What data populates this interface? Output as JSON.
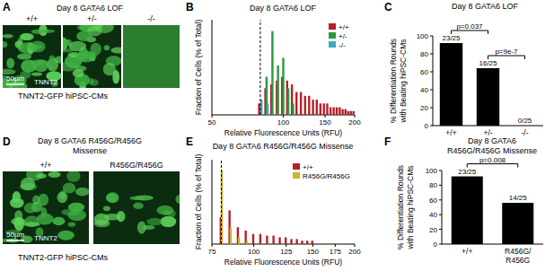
{
  "images": [
    {
      "panel_label": "A",
      "title": [
        "Day 8 GATA6 LOF"
      ],
      "labels": [
        "+/+",
        "+/-",
        "-/-"
      ],
      "stain": "TNNT2",
      "scale_bar": "50μm",
      "caption": "TNNT2-GFP hiPSC-CMs"
    },
    {
      "panel_label": "D",
      "title": [
        "Day 8 GATA6 R456G/R456G",
        "Missense"
      ],
      "labels": [
        "+/+",
        "R456G/R456G"
      ],
      "stain": "TNNT2",
      "scale_bar": "50μm",
      "caption": "TNNT2-GFP hiPSC-CMs"
    }
  ],
  "chart_data": [
    {
      "type": "bar",
      "panel_label": "B",
      "title": [
        "Day 8 GATA6 LOF"
      ],
      "x_label": "Relative Fluorescence Units (RFU)",
      "y_label": [
        "Fraction of Cells (% of Total)"
      ],
      "log": "x",
      "xlim": [
        50,
        200
      ],
      "xticks": [
        50,
        100,
        150,
        200
      ],
      "ylim": [
        0,
        25
      ],
      "yticks": [],
      "tick_labels": "x",
      "legend": "top-right",
      "reference_line": 80,
      "x": [
        80,
        85,
        90,
        95,
        100,
        105,
        110,
        115,
        120,
        125,
        130,
        135,
        140,
        145,
        150,
        155,
        160,
        165,
        170,
        175,
        180,
        185,
        190,
        195,
        200
      ],
      "series": [
        {
          "name": "+/+",
          "color": "#b3202a",
          "values": [
            3,
            7,
            8,
            9,
            10,
            9,
            8,
            6,
            6,
            5,
            5,
            4,
            4,
            3,
            3,
            3,
            2,
            2,
            2,
            2,
            1.5,
            1.5,
            1,
            1,
            1
          ]
        },
        {
          "name": "+/-",
          "color": "#2a9a3c",
          "values": [
            0,
            10,
            22,
            13,
            15,
            7,
            3,
            0,
            0,
            0,
            0,
            0,
            0,
            0,
            0,
            0,
            0,
            0,
            0,
            0,
            0,
            0,
            0,
            0,
            0
          ]
        },
        {
          "name": "-/-",
          "color": "#3aa9c4",
          "values": [
            4,
            3,
            0,
            0,
            0,
            0,
            0,
            0,
            0,
            0,
            0,
            0,
            0,
            0,
            0,
            0,
            0,
            0,
            0,
            0,
            0,
            0,
            0,
            0,
            0
          ]
        }
      ]
    },
    {
      "type": "bar",
      "panel_label": "C",
      "title": [
        "Day 8 GATA6 LOF"
      ],
      "y_label": [
        "% Differentiation Rounds",
        "with Beating hiPSC-CMs"
      ],
      "ylim": [
        0,
        100
      ],
      "yticks": [
        0,
        20,
        40,
        60,
        80,
        100
      ],
      "categories": [
        "+/+",
        "+/-",
        "-/-"
      ],
      "values": [
        92,
        64,
        0
      ],
      "value_labels": [
        "23/25",
        "16/25",
        "0/25"
      ],
      "data_labels": true,
      "color": "#000000",
      "annotations": [
        {
          "text": "p=0.037",
          "between": [
            0,
            1
          ]
        },
        {
          "text": "p=9e-7",
          "between": [
            1,
            2
          ]
        }
      ]
    },
    {
      "type": "bar",
      "panel_label": "E",
      "title": [
        "Day 8 GATA6 R456G/R456G Missense"
      ],
      "x_label": "Relative Fluorescence Units (RFU)",
      "y_label": [
        "Fraction of Cells (% of Total)"
      ],
      "log": "x",
      "xlim": [
        75,
        200
      ],
      "xticks": [
        75,
        100,
        125,
        150,
        175,
        200
      ],
      "ylim": [
        0,
        25
      ],
      "yticks": [],
      "tick_labels": "x",
      "legend": "top-right",
      "reference_line": 80,
      "x": [
        80,
        85,
        90,
        95,
        100,
        105,
        110,
        115,
        120,
        125,
        130,
        135,
        140,
        145,
        150
      ],
      "series": [
        {
          "name": "+/+",
          "color": "#b3202a",
          "values": [
            8,
            10,
            5,
            4,
            3,
            3,
            2.5,
            2.5,
            2,
            2,
            1.5,
            1.5,
            1,
            1,
            1
          ]
        },
        {
          "name": "R456G/R456G",
          "color": "#cdb42a",
          "values": [
            22,
            5,
            2,
            1,
            0,
            0,
            0,
            0,
            0,
            0,
            0,
            0,
            0,
            0,
            0
          ]
        }
      ]
    },
    {
      "type": "bar",
      "panel_label": "F",
      "title": [
        "Day 8 GATA6",
        "R456G/R456G Missense"
      ],
      "y_label": [
        "% Differentiation Rounds",
        "with Beating hiPSC-CMs"
      ],
      "ylim": [
        0,
        100
      ],
      "yticks": [
        0,
        20,
        40,
        60,
        80,
        100
      ],
      "categories": [
        "+/+",
        "R456G/R456G"
      ],
      "values": [
        92,
        56
      ],
      "value_labels": [
        "23/25",
        "14/25"
      ],
      "data_labels": true,
      "color": "#000000",
      "annotations": [
        {
          "text": "p=0.008",
          "between": [
            0,
            1
          ]
        }
      ]
    }
  ]
}
